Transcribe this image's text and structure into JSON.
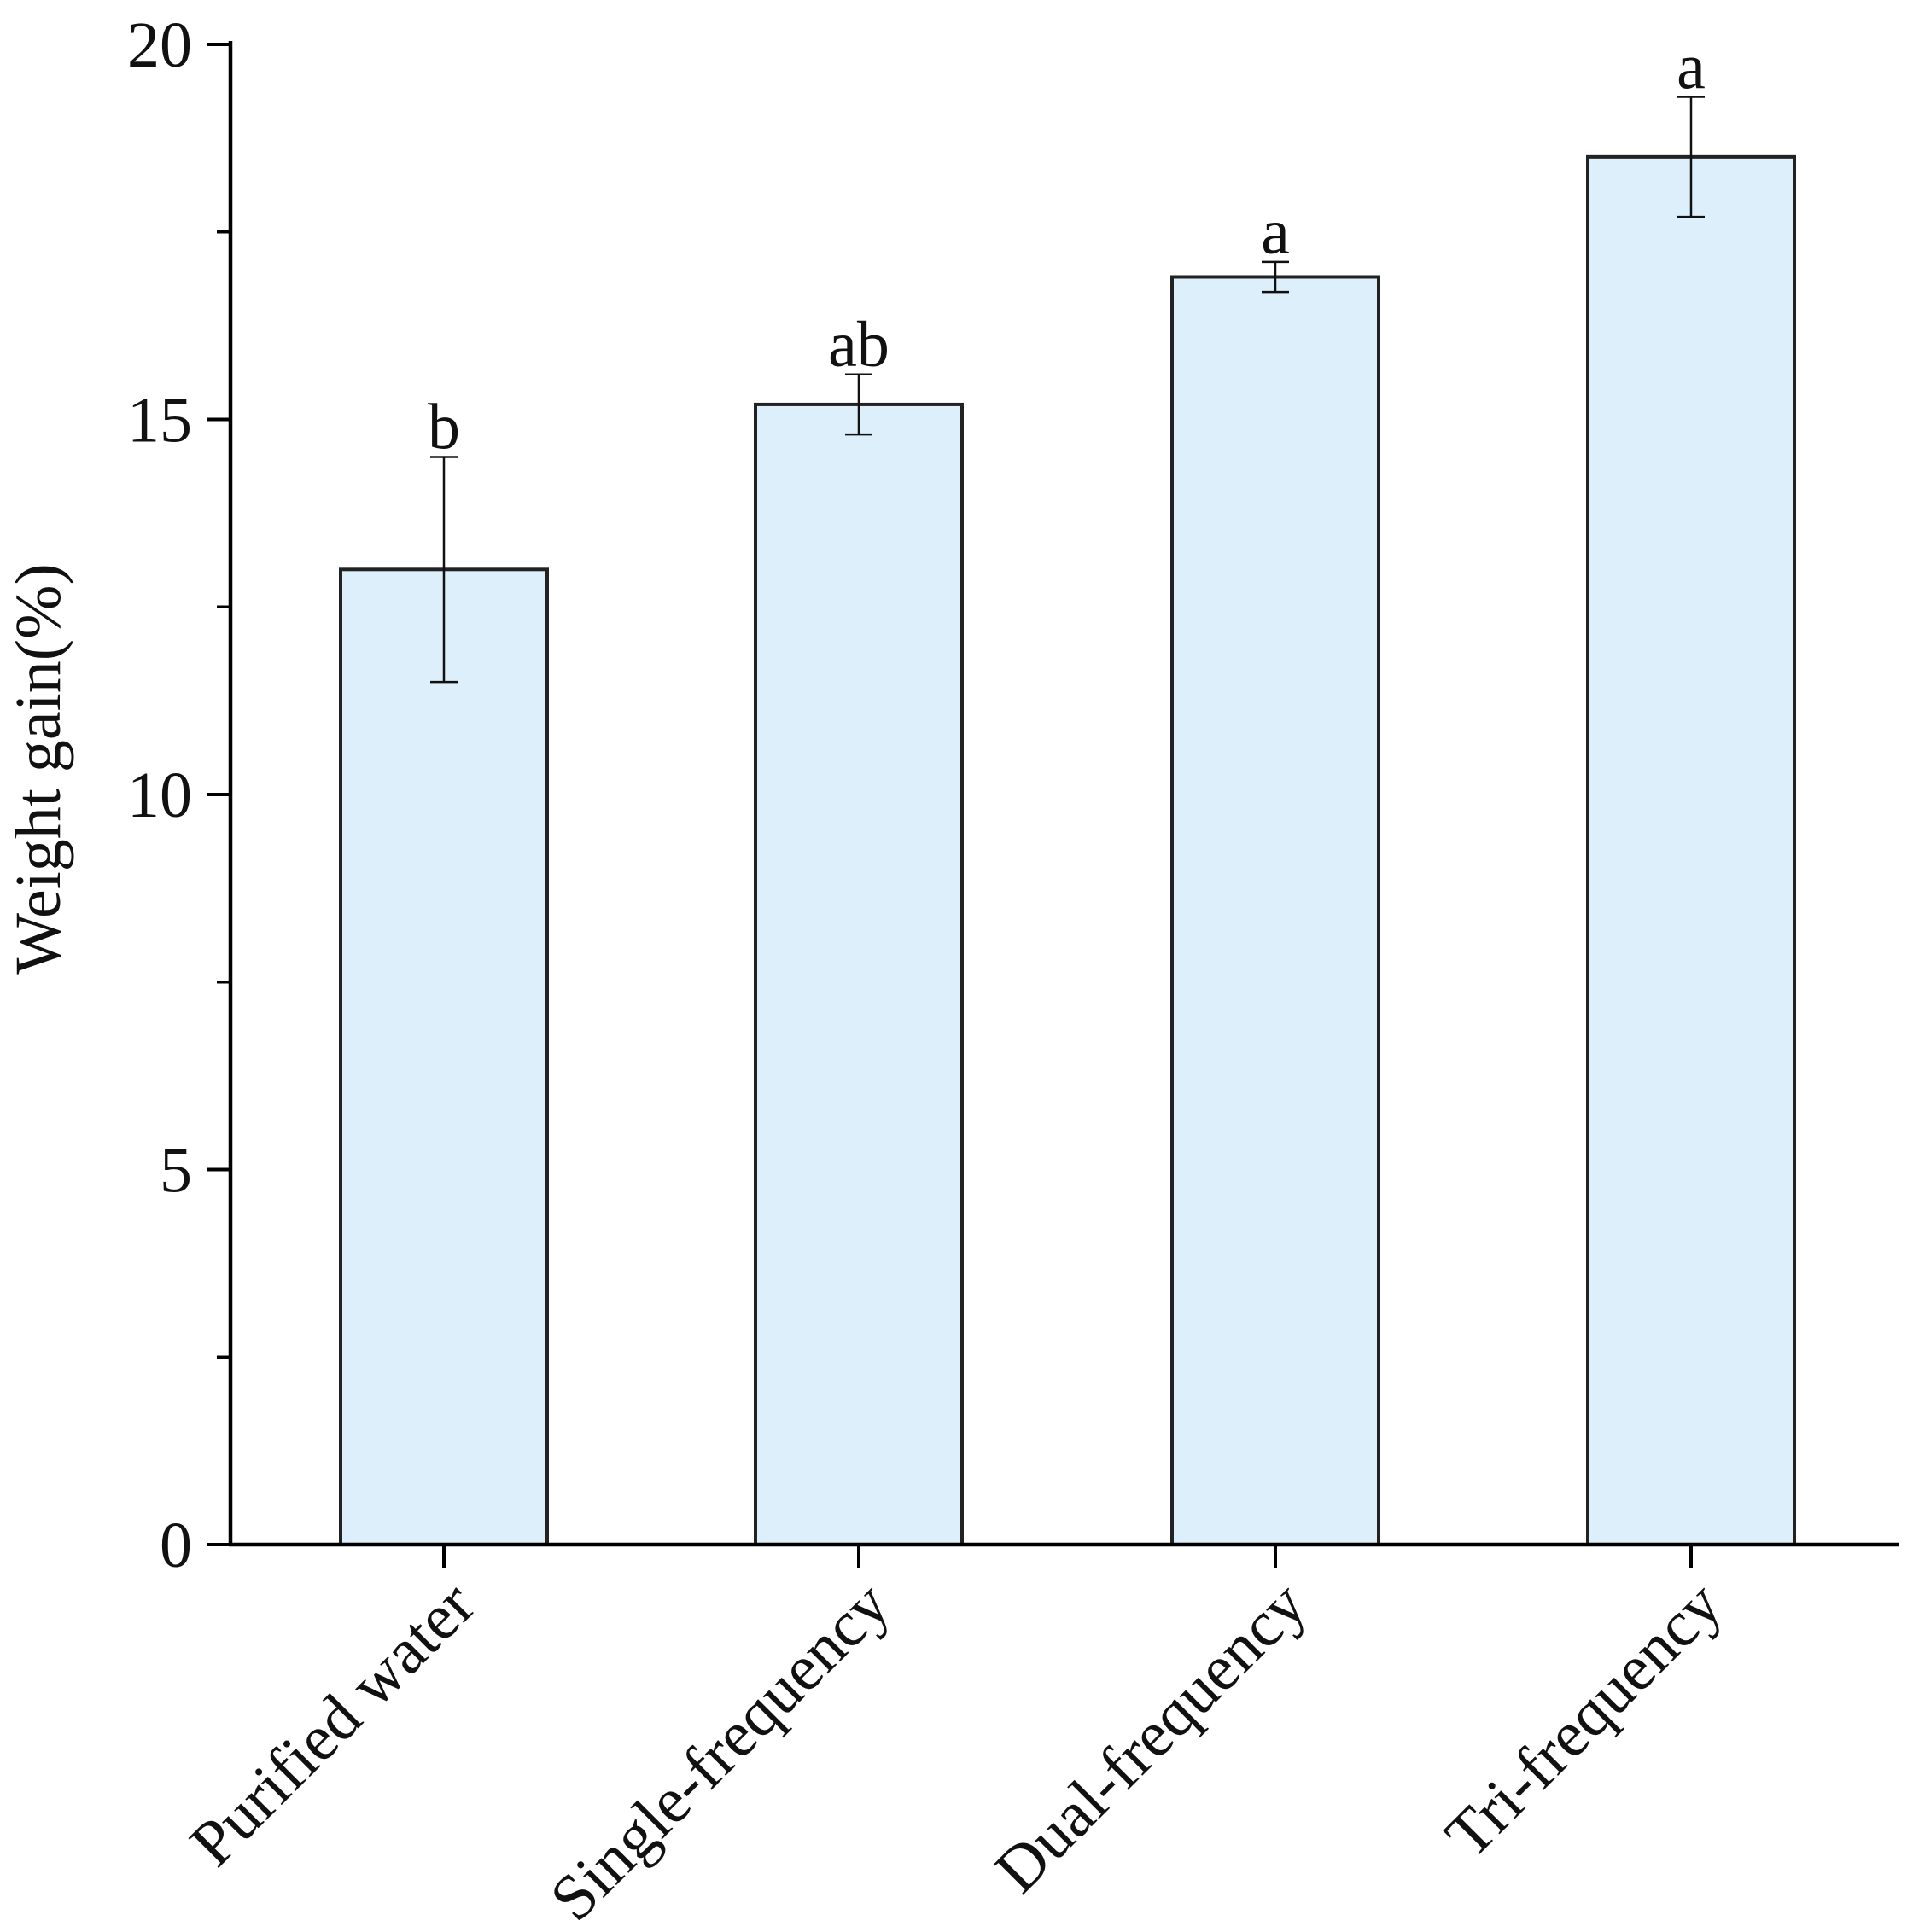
{
  "chart_data": {
    "type": "bar",
    "categories": [
      "Purified water",
      "Single-frequency",
      "Dual-frequency",
      "Tri-frequency"
    ],
    "values": [
      13.0,
      15.2,
      16.9,
      18.5
    ],
    "errors": [
      1.5,
      0.4,
      0.2,
      0.8
    ],
    "significance": [
      "b",
      "ab",
      "a",
      "a"
    ],
    "xlabel": "",
    "ylabel": "Weight gain(%)",
    "ylim": [
      0,
      20
    ],
    "yticks": [
      0,
      5,
      10,
      15,
      20
    ],
    "ytick_labels": [
      "0",
      "5",
      "10",
      "15",
      "20"
    ],
    "grid": false,
    "legend": "none",
    "colors": {
      "bar_fill": "#dcEFFB",
      "bar_stroke": "#222222",
      "axis": "#000000"
    }
  }
}
